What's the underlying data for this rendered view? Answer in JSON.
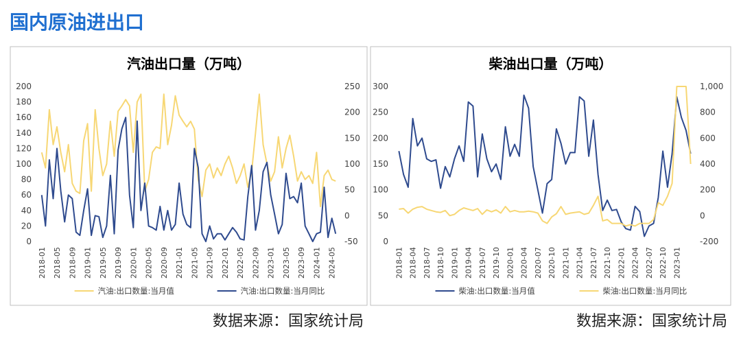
{
  "header": {
    "title": "国内原油进出口"
  },
  "chart_data": [
    {
      "type": "line",
      "title": "汽油出口量（万吨）",
      "source": "数据来源：国家统计局",
      "categories": [
        "2018-01",
        null,
        null,
        null,
        "2018-05",
        null,
        null,
        null,
        "2018-09",
        null,
        null,
        null,
        "2019-01",
        null,
        null,
        null,
        "2019-05",
        null,
        null,
        null,
        "2019-09",
        null,
        null,
        null,
        "2020-01",
        null,
        null,
        null,
        "2020-05",
        null,
        null,
        null,
        "2020-09",
        null,
        null,
        null,
        "2021-01",
        null,
        null,
        null,
        "2021-05",
        null,
        null,
        null,
        "2021-09",
        null,
        null,
        null,
        "2022-01",
        null,
        null,
        null,
        "2022-05",
        null,
        null,
        null,
        "2022-09",
        null,
        null,
        null,
        "2023-01",
        null,
        null,
        null,
        "2023-05",
        null,
        null,
        null,
        "2023-09",
        null,
        null,
        null,
        "2024-01",
        null,
        null,
        null,
        "2024-05",
        null
      ],
      "ylim": [
        0,
        200
      ],
      "yticks": [
        0,
        20,
        40,
        60,
        80,
        100,
        120,
        140,
        160,
        180,
        200
      ],
      "y2lim": [
        -50,
        250
      ],
      "y2ticks": [
        -50,
        0,
        50,
        100,
        150,
        200,
        250
      ],
      "legend": "bottom",
      "series": [
        {
          "name": "汽油:出口数量:当月值",
          "color": "#f7d774",
          "values": [
            115,
            95,
            170,
            125,
            148,
            115,
            90,
            125,
            75,
            65,
            62,
            130,
            152,
            65,
            170,
            120,
            85,
            100,
            155,
            110,
            168,
            175,
            183,
            175,
            115,
            180,
            190,
            65,
            80,
            115,
            122,
            120,
            190,
            125,
            150,
            188,
            163,
            155,
            148,
            155,
            145,
            80,
            58,
            92,
            100,
            82,
            95,
            85,
            100,
            110,
            95,
            75,
            85,
            100,
            70,
            90,
            140,
            190,
            125,
            100,
            78,
            90,
            135,
            95,
            120,
            137,
            110,
            78,
            90,
            80,
            85,
            75,
            115,
            45,
            85,
            92,
            80,
            78
          ]
        },
        {
          "name": "汽油:出口数量:当月同比",
          "color": "#2e4a8e",
          "axis": "y2",
          "values": [
            40,
            -20,
            108,
            33,
            130,
            48,
            -12,
            40,
            33,
            -32,
            -38,
            10,
            52,
            -38,
            0,
            -2,
            -42,
            -20,
            78,
            -35,
            127,
            168,
            190,
            40,
            -23,
            183,
            10,
            63,
            -20,
            -23,
            -28,
            18,
            -28,
            10,
            -28,
            -17,
            63,
            3,
            -17,
            -23,
            130,
            93,
            -35,
            -50,
            -20,
            -45,
            -35,
            -35,
            -47,
            -35,
            -23,
            -32,
            -45,
            -47,
            37,
            97,
            -28,
            10,
            85,
            103,
            40,
            3,
            -35,
            -17,
            82,
            33,
            37,
            25,
            63,
            -20,
            -35,
            -50,
            -35,
            -32,
            55,
            -42,
            -5,
            -35
          ]
        }
      ]
    },
    {
      "type": "line",
      "title": "柴油出口量（万吨）",
      "source": "数据来源：国家统计局",
      "categories": [
        "2018-01",
        null,
        null,
        "2018-04",
        null,
        null,
        "2018-07",
        null,
        null,
        "2018-10",
        null,
        null,
        "2019-01",
        null,
        null,
        "2019-04",
        null,
        null,
        "2019-07",
        null,
        null,
        "2019-10",
        null,
        null,
        "2020-01",
        null,
        null,
        "2020-04",
        null,
        null,
        "2020-07",
        null,
        null,
        "2020-10",
        null,
        null,
        "2021-01",
        null,
        null,
        "2021-04",
        null,
        null,
        "2021-07",
        null,
        null,
        "2021-10",
        null,
        null,
        "2022-01",
        null,
        null,
        "2022-04",
        null,
        null,
        "2022-07",
        null,
        null,
        "2022-10",
        null,
        null,
        "2023-01",
        null,
        null,
        null
      ],
      "ylim": [
        0,
        300
      ],
      "yticks": [
        0,
        50,
        100,
        150,
        200,
        250,
        300
      ],
      "y2lim": [
        -200,
        1000
      ],
      "y2ticks": [
        -200,
        0,
        200,
        400,
        600,
        800,
        {
          "value": 1000,
          "label": "1,000"
        }
      ],
      "legend": "bottom",
      "series": [
        {
          "name": "柴油:出口数量:当月值",
          "color": "#2e4a8e",
          "values": [
            175,
            130,
            105,
            238,
            185,
            200,
            160,
            155,
            158,
            103,
            145,
            125,
            160,
            185,
            155,
            270,
            262,
            125,
            208,
            160,
            135,
            150,
            120,
            222,
            165,
            188,
            165,
            283,
            258,
            145,
            100,
            55,
            112,
            120,
            218,
            190,
            150,
            172,
            172,
            280,
            272,
            165,
            235,
            130,
            60,
            80,
            60,
            62,
            38,
            25,
            22,
            68,
            58,
            10,
            30,
            35,
            85,
            175,
            105,
            170,
            280,
            240,
            215,
            170
          ]
        },
        {
          "name": "柴油:出口数量:当月同比",
          "color": "#f7d774",
          "axis": "y2",
          "values": [
            50,
            55,
            20,
            50,
            65,
            70,
            50,
            40,
            30,
            25,
            40,
            0,
            10,
            40,
            60,
            50,
            40,
            55,
            10,
            45,
            30,
            45,
            20,
            70,
            30,
            40,
            30,
            30,
            35,
            30,
            20,
            -40,
            -60,
            -10,
            15,
            70,
            10,
            20,
            25,
            30,
            10,
            20,
            80,
            150,
            -40,
            -30,
            -60,
            -60,
            -60,
            -80,
            -70,
            -80,
            -60,
            -60,
            -60,
            -30,
            100,
            80,
            150,
            250,
            1000,
            1000,
            1000,
            400
          ]
        }
      ]
    }
  ]
}
